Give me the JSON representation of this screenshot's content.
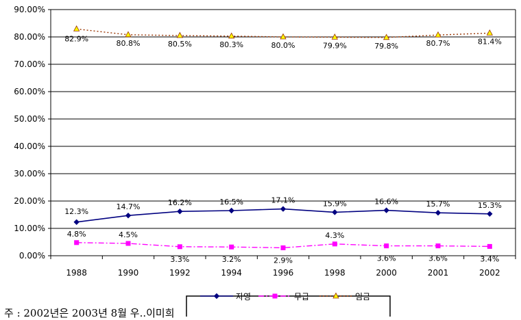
{
  "chart_data": {
    "type": "line",
    "categories": [
      "1988",
      "1990",
      "1992",
      "1994",
      "1996",
      "1998",
      "2000",
      "2001",
      "2002"
    ],
    "ylim": [
      0,
      90
    ],
    "ytick_labels": [
      "0.00%",
      "10.00%",
      "20.00%",
      "30.00%",
      "40.00%",
      "50.00%",
      "60.00%",
      "70.00%",
      "80.00%",
      "90.00%"
    ],
    "grid": true,
    "legend_position": "bottom",
    "series": [
      {
        "name": "자영",
        "color": "#000080",
        "marker": "diamond",
        "line_style": "solid",
        "values": [
          12.3,
          14.7,
          16.2,
          16.5,
          17.1,
          15.9,
          16.6,
          15.7,
          15.3
        ],
        "labels": [
          "12.3%",
          "14.7%",
          "16.2%",
          "16.5%",
          "17.1%",
          "15.9%",
          "16.6%",
          "15.7%",
          "15.3%"
        ]
      },
      {
        "name": "무급",
        "color": "#FF00FF",
        "marker": "square",
        "line_style": "dashdot",
        "values": [
          4.8,
          4.5,
          3.3,
          3.2,
          2.9,
          4.3,
          3.6,
          3.6,
          3.4
        ],
        "labels": [
          "4.8%",
          "4.5%",
          "3.3%",
          "3.2%",
          "2.9%",
          "4.3%",
          "3.6%",
          "3.6%",
          "3.4%"
        ]
      },
      {
        "name": "임금",
        "color": "#993300",
        "marker_color": "#FFFF00",
        "marker": "triangle",
        "line_style": "dotted",
        "values": [
          82.9,
          80.8,
          80.5,
          80.3,
          80.0,
          79.9,
          79.8,
          80.7,
          81.4
        ],
        "labels": [
          "82.9%",
          "80.8%",
          "80.5%",
          "80.3%",
          "80.0%",
          "79.9%",
          "79.8%",
          "80.7%",
          "81.4%"
        ]
      }
    ]
  },
  "note": "주 : 2002년은 2003년 8월 우..이미희"
}
